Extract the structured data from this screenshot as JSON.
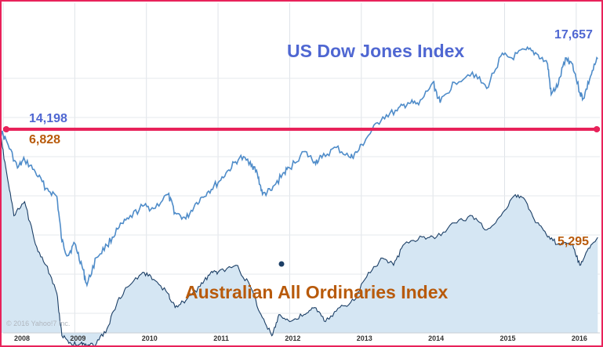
{
  "chart_data": {
    "type": "area",
    "xlim": [
      2008.0,
      2016.33
    ],
    "x_ticks": [
      "2008",
      "2009",
      "2010",
      "2011",
      "2012",
      "2013",
      "2014",
      "2015",
      "2016"
    ],
    "copyright": "© 2016 Yahoo!7 Inc.",
    "series": [
      {
        "name": "US Dow Jones Index",
        "color": "#4f8cc9",
        "label_color": "#4f67d2",
        "start_label": "14,198",
        "end_label": "17,657",
        "points": [
          [
            2007.95,
            14198
          ],
          [
            2008.05,
            13600
          ],
          [
            2008.2,
            12300
          ],
          [
            2008.3,
            12700
          ],
          [
            2008.45,
            12100
          ],
          [
            2008.6,
            11300
          ],
          [
            2008.75,
            10900
          ],
          [
            2008.82,
            8700
          ],
          [
            2008.9,
            8000
          ],
          [
            2009.0,
            8600
          ],
          [
            2009.1,
            7500
          ],
          [
            2009.17,
            6547
          ],
          [
            2009.3,
            7900
          ],
          [
            2009.45,
            8500
          ],
          [
            2009.6,
            9300
          ],
          [
            2009.75,
            9800
          ],
          [
            2009.95,
            10428
          ],
          [
            2010.1,
            10300
          ],
          [
            2010.3,
            11000
          ],
          [
            2010.4,
            10100
          ],
          [
            2010.55,
            9800
          ],
          [
            2010.7,
            10600
          ],
          [
            2010.85,
            11100
          ],
          [
            2011.0,
            11577
          ],
          [
            2011.15,
            12200
          ],
          [
            2011.3,
            12800
          ],
          [
            2011.45,
            12600
          ],
          [
            2011.55,
            12000
          ],
          [
            2011.62,
            11000
          ],
          [
            2011.75,
            11200
          ],
          [
            2011.9,
            12000
          ],
          [
            2012.0,
            12300
          ],
          [
            2012.2,
            13100
          ],
          [
            2012.35,
            12600
          ],
          [
            2012.45,
            12800
          ],
          [
            2012.65,
            13300
          ],
          [
            2012.85,
            12800
          ],
          [
            2012.95,
            13100
          ],
          [
            2013.1,
            13900
          ],
          [
            2013.3,
            14800
          ],
          [
            2013.5,
            15100
          ],
          [
            2013.65,
            15500
          ],
          [
            2013.8,
            15400
          ],
          [
            2014.0,
            16500
          ],
          [
            2014.1,
            15500
          ],
          [
            2014.3,
            16500
          ],
          [
            2014.55,
            17000
          ],
          [
            2014.75,
            16200
          ],
          [
            2014.95,
            17800
          ],
          [
            2015.1,
            17700
          ],
          [
            2015.3,
            18100
          ],
          [
            2015.45,
            17900
          ],
          [
            2015.6,
            17400
          ],
          [
            2015.65,
            15900
          ],
          [
            2015.75,
            16400
          ],
          [
            2015.85,
            17700
          ],
          [
            2015.95,
            17400
          ],
          [
            2016.05,
            16000
          ],
          [
            2016.1,
            15700
          ],
          [
            2016.2,
            16800
          ],
          [
            2016.3,
            17657
          ]
        ]
      },
      {
        "name": "Australian All Ordinaries Index",
        "color": "#1c3f66",
        "label_color": "#b85a0b",
        "start_label": "6,828",
        "end_label": "5,295",
        "points": [
          [
            2007.95,
            6828
          ],
          [
            2008.05,
            6200
          ],
          [
            2008.15,
            5600
          ],
          [
            2008.3,
            5800
          ],
          [
            2008.45,
            5200
          ],
          [
            2008.6,
            4900
          ],
          [
            2008.75,
            4500
          ],
          [
            2008.82,
            3900
          ],
          [
            2008.95,
            3600
          ],
          [
            2009.08,
            3400
          ],
          [
            2009.15,
            3200
          ],
          [
            2009.3,
            3700
          ],
          [
            2009.45,
            4000
          ],
          [
            2009.6,
            4400
          ],
          [
            2009.75,
            4600
          ],
          [
            2009.95,
            4800
          ],
          [
            2010.1,
            4700
          ],
          [
            2010.3,
            4500
          ],
          [
            2010.4,
            4300
          ],
          [
            2010.55,
            4400
          ],
          [
            2010.75,
            4600
          ],
          [
            2010.9,
            4800
          ],
          [
            2011.0,
            4800
          ],
          [
            2011.25,
            4900
          ],
          [
            2011.45,
            4600
          ],
          [
            2011.6,
            4200
          ],
          [
            2011.75,
            3900
          ],
          [
            2011.85,
            4200
          ],
          [
            2012.0,
            4100
          ],
          [
            2012.2,
            4200
          ],
          [
            2012.35,
            4300
          ],
          [
            2012.5,
            4100
          ],
          [
            2012.7,
            4300
          ],
          [
            2012.9,
            4400
          ],
          [
            2013.1,
            4800
          ],
          [
            2013.3,
            5000
          ],
          [
            2013.45,
            4900
          ],
          [
            2013.6,
            5200
          ],
          [
            2013.85,
            5300
          ],
          [
            2014.05,
            5300
          ],
          [
            2014.3,
            5500
          ],
          [
            2014.55,
            5600
          ],
          [
            2014.75,
            5400
          ],
          [
            2014.95,
            5600
          ],
          [
            2015.15,
            5900
          ],
          [
            2015.3,
            5800
          ],
          [
            2015.45,
            5500
          ],
          [
            2015.6,
            5300
          ],
          [
            2015.75,
            5200
          ],
          [
            2015.95,
            5200
          ],
          [
            2016.05,
            4900
          ],
          [
            2016.15,
            5100
          ],
          [
            2016.3,
            5295
          ]
        ]
      }
    ]
  }
}
